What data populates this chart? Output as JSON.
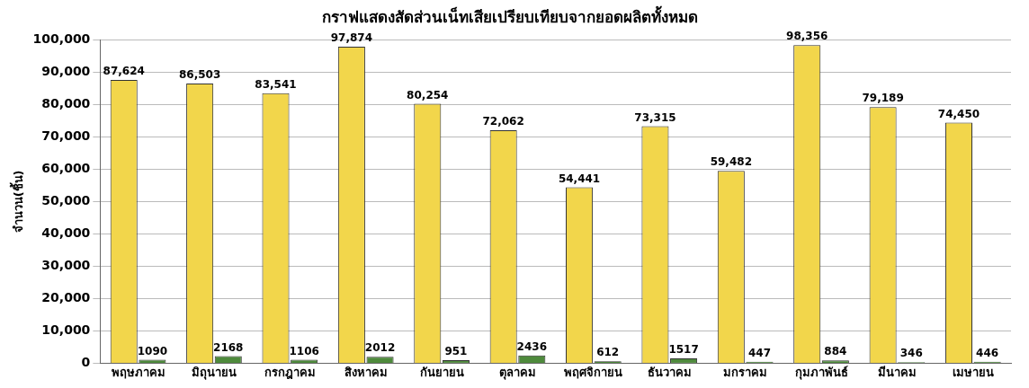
{
  "chart_data": {
    "type": "bar",
    "title": "กราฟแสดงสัดส่วนเน็ทเสียเปรียบเทียบจากยอดผลิตทั้งหมด",
    "ylabel": "จำนวน(ชิ้น)",
    "categories": [
      "พฤษภาคม",
      "มิถุนายน",
      "กรกฎาคม",
      "สิงหาคม",
      "กันยายน",
      "ตุลาคม",
      "พฤศจิกายน",
      "ธันวาคม",
      "มกราคม",
      "กุมภาพันธ์",
      "มีนาคม",
      "เมษายน"
    ],
    "series": [
      {
        "color": "#f2d64b",
        "values": [
          87624,
          86503,
          83541,
          97874,
          80254,
          72062,
          54441,
          73315,
          59482,
          98356,
          79189,
          74450
        ],
        "value_labels": [
          "87,624",
          "86,503",
          "83,541",
          "97,874",
          "80,254",
          "72,062",
          "54,441",
          "73,315",
          "59,482",
          "98,356",
          "79,189",
          "74,450"
        ]
      },
      {
        "color": "#4e8a3c",
        "values": [
          1090,
          2168,
          1106,
          2012,
          951,
          2436,
          612,
          1517,
          447,
          884,
          346,
          446
        ],
        "value_labels": [
          "1090",
          "2168",
          "1106",
          "2012",
          "951",
          "2436",
          "612",
          "1517",
          "447",
          "884",
          "346",
          "446"
        ]
      }
    ],
    "ylim": [
      0,
      100000
    ],
    "yticks": [
      {
        "value": 0,
        "label": "0"
      },
      {
        "value": 10000,
        "label": "10,000"
      },
      {
        "value": 20000,
        "label": "20,000"
      },
      {
        "value": 30000,
        "label": "30,000"
      },
      {
        "value": 40000,
        "label": "40,000"
      },
      {
        "value": 50000,
        "label": "50,000"
      },
      {
        "value": 60000,
        "label": "60,000"
      },
      {
        "value": 70000,
        "label": "70,000"
      },
      {
        "value": 80000,
        "label": "80,000"
      },
      {
        "value": 90000,
        "label": "90,000"
      },
      {
        "value": 100000,
        "label": "100,000"
      }
    ],
    "grid": "y",
    "legend": false
  }
}
